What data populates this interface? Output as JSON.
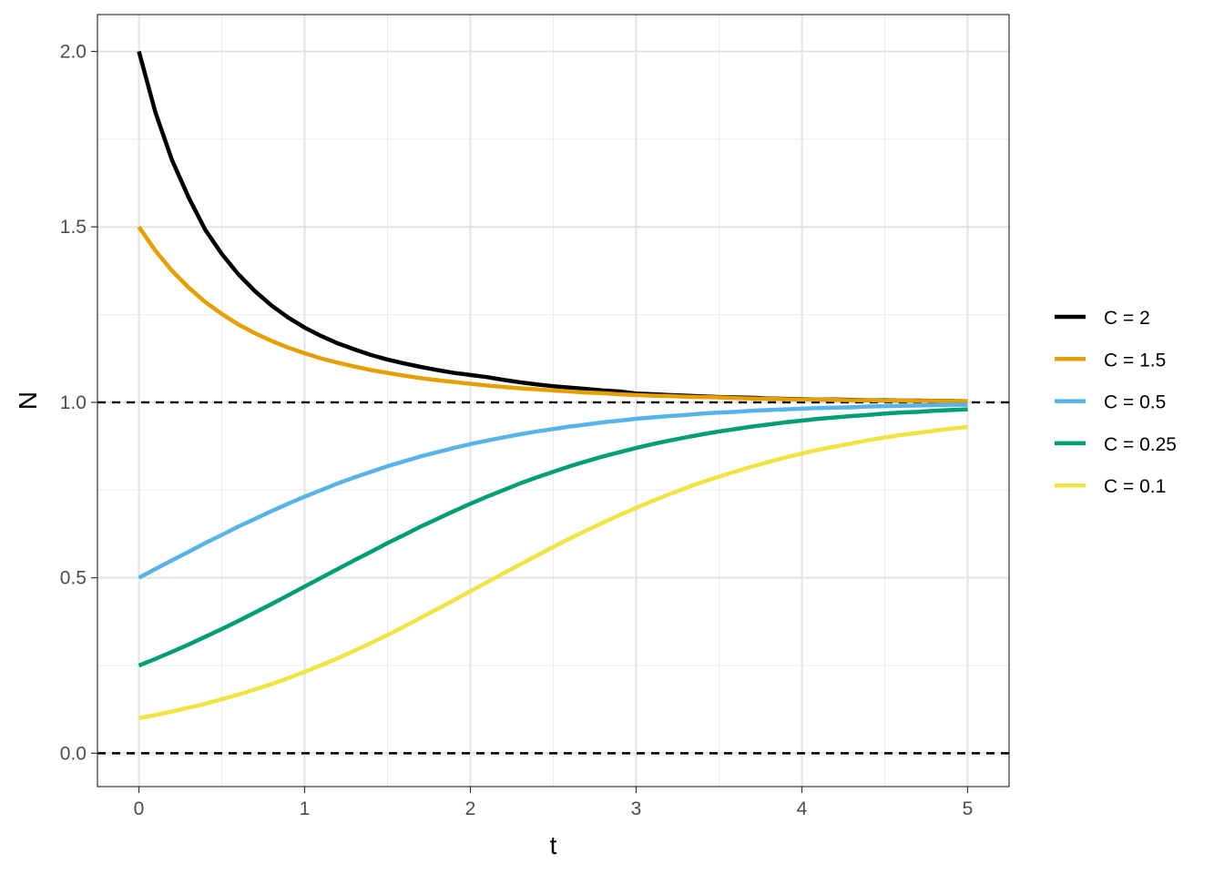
{
  "chart_data": {
    "type": "line",
    "title": "",
    "xlabel": "t",
    "ylabel": "N",
    "xlim": [
      -0.25,
      5.25
    ],
    "ylim": [
      -0.095,
      2.105
    ],
    "grid": true,
    "x_ticks": [
      0,
      1,
      2,
      3,
      4,
      5
    ],
    "y_ticks": [
      0.0,
      0.5,
      1.0,
      1.5,
      2.0
    ],
    "x_tick_labels": [
      "0",
      "1",
      "2",
      "3",
      "4",
      "5"
    ],
    "y_tick_labels": [
      "0.0",
      "0.5",
      "1.0",
      "1.5",
      "2.0"
    ],
    "x": [
      0,
      0.1,
      0.2,
      0.3,
      0.4,
      0.5,
      0.6,
      0.7,
      0.8,
      0.9,
      1.0,
      1.1,
      1.2,
      1.3,
      1.4,
      1.5,
      1.6,
      1.7,
      1.8,
      1.9,
      2.0,
      2.1,
      2.2,
      2.3,
      2.4,
      2.5,
      2.6,
      2.7,
      2.8,
      2.9,
      3.0,
      3.1,
      3.2,
      3.3,
      3.4,
      3.5,
      3.6,
      3.7,
      3.8,
      3.9,
      4.0,
      4.1,
      4.2,
      4.3,
      4.4,
      4.5,
      4.6,
      4.7,
      4.8,
      4.9,
      5.0
    ],
    "series": [
      {
        "name": "C = 2",
        "color": "#000000",
        "values": [
          2.0,
          1.826,
          1.69,
          1.584,
          1.492,
          1.423,
          1.365,
          1.317,
          1.276,
          1.242,
          1.213,
          1.189,
          1.168,
          1.151,
          1.135,
          1.122,
          1.111,
          1.101,
          1.092,
          1.084,
          1.078,
          1.072,
          1.064,
          1.057,
          1.051,
          1.046,
          1.042,
          1.038,
          1.034,
          1.031,
          1.025,
          1.023,
          1.021,
          1.019,
          1.017,
          1.015,
          1.014,
          1.013,
          1.011,
          1.01,
          1.009,
          1.008,
          1.008,
          1.007,
          1.006,
          1.006,
          1.005,
          1.005,
          1.004,
          1.004,
          1.003
        ]
      },
      {
        "name": "C = 1.5",
        "color": "#E69F00",
        "values": [
          1.5,
          1.432,
          1.375,
          1.327,
          1.286,
          1.252,
          1.222,
          1.197,
          1.175,
          1.156,
          1.14,
          1.125,
          1.113,
          1.102,
          1.092,
          1.084,
          1.076,
          1.069,
          1.063,
          1.058,
          1.053,
          1.048,
          1.044,
          1.04,
          1.037,
          1.034,
          1.031,
          1.028,
          1.026,
          1.023,
          1.021,
          1.019,
          1.018,
          1.016,
          1.015,
          1.014,
          1.012,
          1.011,
          1.01,
          1.009,
          1.008,
          1.008,
          1.007,
          1.006,
          1.006,
          1.005,
          1.005,
          1.004,
          1.004,
          1.004,
          1.003
        ]
      },
      {
        "name": "C = 0.5",
        "color": "#56B4E9",
        "values": [
          0.5,
          0.525,
          0.55,
          0.574,
          0.599,
          0.622,
          0.646,
          0.668,
          0.69,
          0.711,
          0.731,
          0.75,
          0.769,
          0.786,
          0.802,
          0.818,
          0.832,
          0.846,
          0.858,
          0.87,
          0.881,
          0.891,
          0.9,
          0.909,
          0.917,
          0.924,
          0.931,
          0.937,
          0.943,
          0.948,
          0.953,
          0.957,
          0.961,
          0.964,
          0.968,
          0.971,
          0.973,
          0.976,
          0.978,
          0.98,
          0.982,
          0.984,
          0.985,
          0.986,
          0.988,
          0.989,
          0.99,
          0.991,
          0.992,
          0.993,
          0.993
        ]
      },
      {
        "name": "C = 0.25",
        "color": "#009E73",
        "values": [
          0.25,
          0.269,
          0.289,
          0.31,
          0.332,
          0.354,
          0.377,
          0.401,
          0.425,
          0.45,
          0.475,
          0.5,
          0.525,
          0.55,
          0.574,
          0.599,
          0.622,
          0.646,
          0.668,
          0.69,
          0.711,
          0.731,
          0.75,
          0.769,
          0.786,
          0.802,
          0.818,
          0.832,
          0.846,
          0.858,
          0.87,
          0.881,
          0.891,
          0.9,
          0.909,
          0.917,
          0.924,
          0.931,
          0.937,
          0.943,
          0.948,
          0.953,
          0.957,
          0.961,
          0.964,
          0.968,
          0.971,
          0.973,
          0.976,
          0.978,
          0.98
        ]
      },
      {
        "name": "C = 0.1",
        "color": "#F0E442",
        "values": [
          0.1,
          0.109,
          0.119,
          0.13,
          0.141,
          0.154,
          0.167,
          0.182,
          0.197,
          0.214,
          0.232,
          0.251,
          0.271,
          0.292,
          0.314,
          0.337,
          0.361,
          0.386,
          0.411,
          0.436,
          0.462,
          0.487,
          0.513,
          0.538,
          0.563,
          0.588,
          0.612,
          0.635,
          0.657,
          0.679,
          0.699,
          0.719,
          0.738,
          0.756,
          0.773,
          0.788,
          0.803,
          0.817,
          0.83,
          0.843,
          0.854,
          0.865,
          0.874,
          0.883,
          0.892,
          0.9,
          0.907,
          0.913,
          0.919,
          0.925,
          0.93
        ]
      }
    ],
    "reference_lines": [
      {
        "axis": "y",
        "value": 1.0,
        "style": "dashed",
        "color": "#000000"
      },
      {
        "axis": "y",
        "value": 0.0,
        "style": "dashed",
        "color": "#000000"
      }
    ],
    "legend_position": "right"
  }
}
